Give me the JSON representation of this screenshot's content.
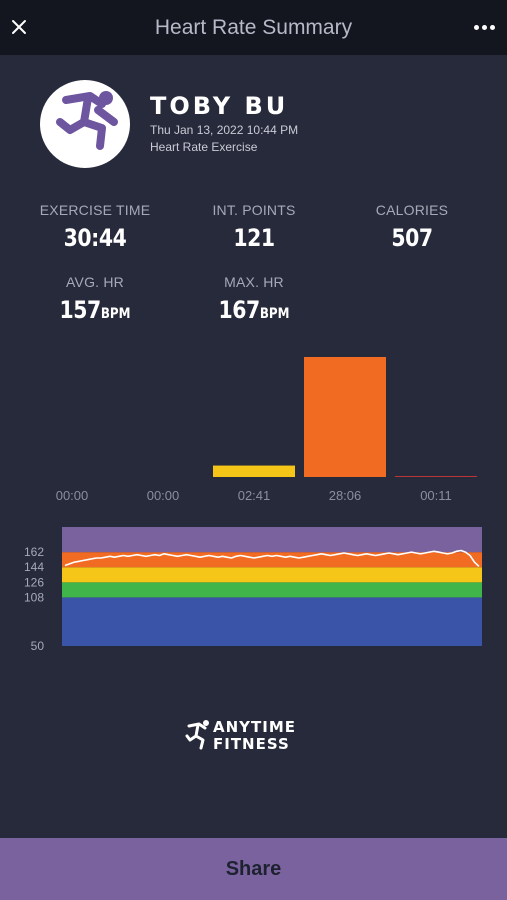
{
  "header": {
    "title": "Heart Rate Summary",
    "close_icon": "close-icon",
    "more_icon": "more-horizontal-icon"
  },
  "profile": {
    "name": "TOBY BU",
    "date": "Thu Jan 13, 2022 10:44 PM",
    "exercise_type": "Heart Rate Exercise",
    "avatar_icon": "running-man-icon"
  },
  "stats": {
    "exercise_time": {
      "label": "EXERCISE TIME",
      "value": "30:44"
    },
    "int_points": {
      "label": "INT. POINTS",
      "value": "121"
    },
    "calories": {
      "label": "CALORIES",
      "value": "507"
    },
    "avg_hr": {
      "label": "AVG. HR",
      "value": "157",
      "unit": "BPM"
    },
    "max_hr": {
      "label": "MAX. HR",
      "value": "167",
      "unit": "BPM"
    }
  },
  "chart_data": [
    {
      "type": "bar",
      "categories": [
        "00:00",
        "00:00",
        "02:41",
        "28:06",
        "00:11"
      ],
      "values": [
        0,
        0,
        2.68,
        28.1,
        0.18
      ],
      "colors": [
        "#7a629e",
        "#3a55a8",
        "#f5c518",
        "#f26b22",
        "#e53935"
      ],
      "ylim": [
        0,
        28.1
      ]
    },
    {
      "type": "line",
      "y_ticks": [
        50,
        108,
        126,
        144,
        162
      ],
      "ylim": [
        50,
        192
      ],
      "zones": [
        {
          "min": 50,
          "max": 108,
          "color": "#3a55a8"
        },
        {
          "min": 108,
          "max": 126,
          "color": "#3fb54a"
        },
        {
          "min": 126,
          "max": 144,
          "color": "#f5c518"
        },
        {
          "min": 144,
          "max": 162,
          "color": "#f26b22"
        },
        {
          "min": 162,
          "max": 192,
          "color": "#7a629e"
        }
      ],
      "series": [
        {
          "values": [
            146,
            148,
            150,
            151,
            152,
            153,
            154,
            155,
            155,
            156,
            157,
            156,
            157,
            158,
            157,
            158,
            159,
            158,
            157,
            158,
            159,
            158,
            160,
            159,
            158,
            157,
            158,
            159,
            158,
            157,
            156,
            157,
            158,
            157,
            156,
            157,
            156,
            155,
            157,
            158,
            157,
            156,
            155,
            156,
            157,
            158,
            157,
            158,
            157,
            156,
            157,
            156,
            155,
            156,
            157,
            158,
            159,
            160,
            159,
            158,
            159,
            160,
            161,
            160,
            159,
            158,
            159,
            160,
            159,
            158,
            159,
            160,
            161,
            160,
            159,
            160,
            161,
            162,
            161,
            160,
            161,
            162,
            163,
            162,
            161,
            160,
            161,
            163,
            164,
            162,
            158,
            150,
            145
          ]
        }
      ]
    }
  ],
  "brand": {
    "line1": "ANYTIME",
    "line2": "FITNESS"
  },
  "share": {
    "label": "Share"
  }
}
